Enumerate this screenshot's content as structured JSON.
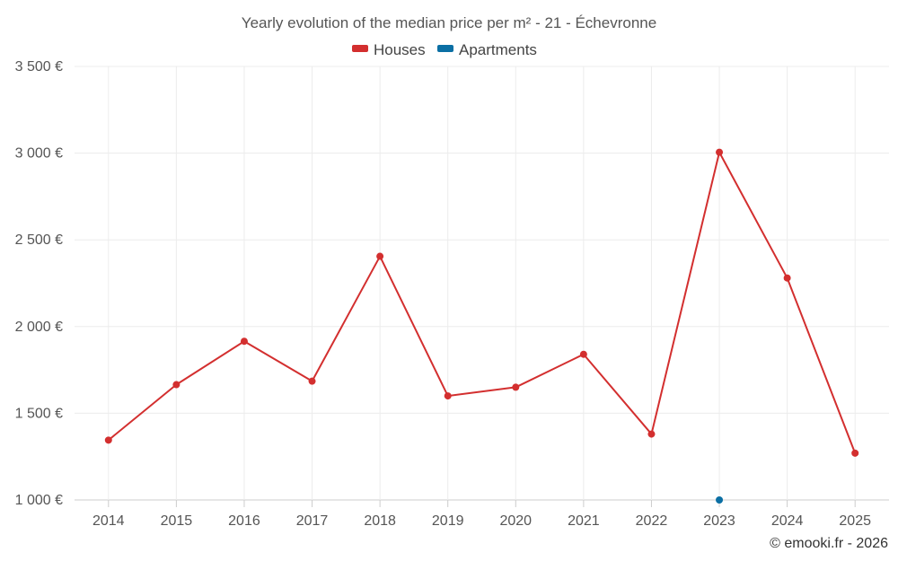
{
  "chart_data": {
    "type": "line",
    "title": "Yearly evolution of the median price per m² - 21 - Échevronne",
    "categories": [
      "2014",
      "2015",
      "2016",
      "2017",
      "2018",
      "2019",
      "2020",
      "2021",
      "2022",
      "2023",
      "2024",
      "2025"
    ],
    "series": [
      {
        "name": "Houses",
        "color": "#d32f2f",
        "values": [
          1345,
          1665,
          1915,
          1685,
          2405,
          1600,
          1650,
          1840,
          1380,
          3005,
          2280,
          1270
        ]
      },
      {
        "name": "Apartments",
        "color": "#0b6fa4",
        "values": [
          null,
          null,
          null,
          null,
          null,
          null,
          null,
          null,
          null,
          1000,
          null,
          null
        ]
      }
    ],
    "yticks": [
      "1 000 €",
      "1 500 €",
      "2 000 €",
      "2 500 €",
      "3 000 €",
      "3 500 €"
    ],
    "ytick_values": [
      1000,
      1500,
      2000,
      2500,
      3000,
      3500
    ],
    "ylim": [
      1000,
      3500
    ],
    "xlabel": "",
    "ylabel": "",
    "grid": true,
    "legend_position": "top-center"
  },
  "credit": "© emooki.fr - 2026"
}
